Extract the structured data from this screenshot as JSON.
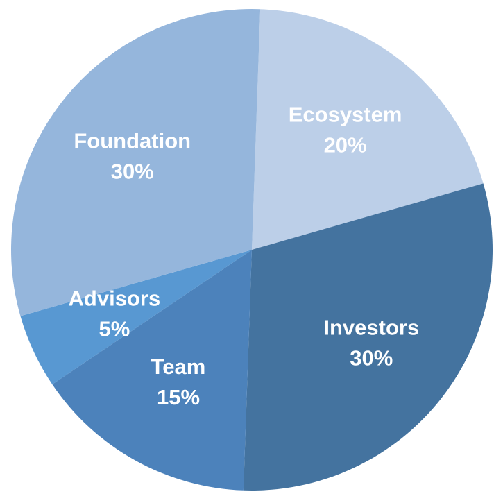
{
  "chart_data": {
    "type": "pie",
    "title": "",
    "slices": [
      {
        "label": "Ecosystem",
        "value": 20,
        "value_label": "20%",
        "color": "#bccfe8"
      },
      {
        "label": "Investors",
        "value": 30,
        "value_label": "30%",
        "color": "#44739f"
      },
      {
        "label": "Team",
        "value": 15,
        "value_label": "15%",
        "color": "#4c82bb"
      },
      {
        "label": "Advisors",
        "value": 5,
        "value_label": "5%",
        "color": "#5898d2"
      },
      {
        "label": "Foundation",
        "value": 30,
        "value_label": "30%",
        "color": "#95b6dc"
      }
    ],
    "start_angle_deg": 2,
    "direction": "clockwise",
    "legend": "none"
  }
}
